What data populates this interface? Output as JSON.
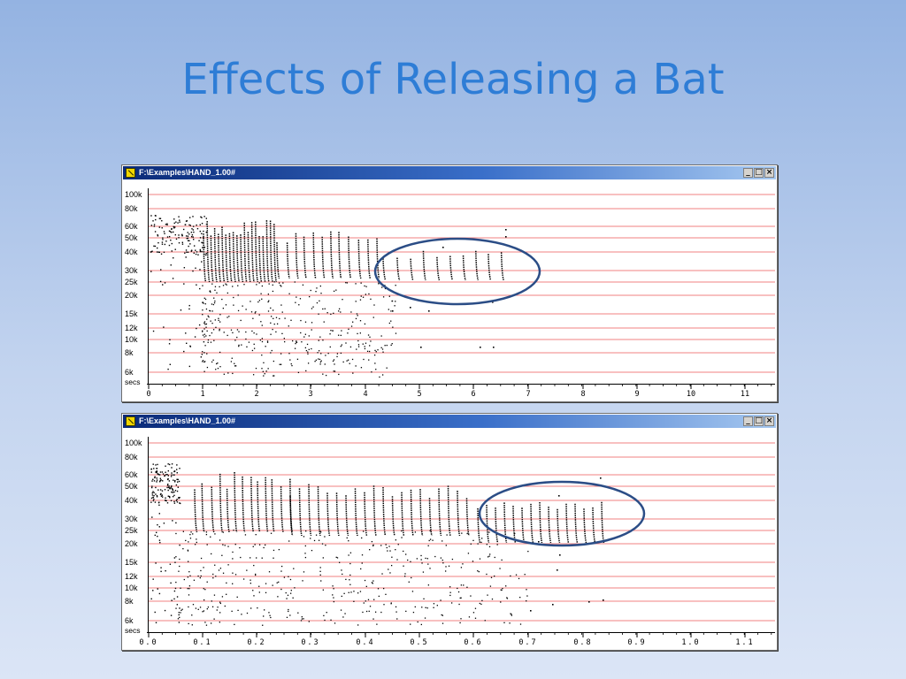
{
  "slide": {
    "title": "Effects of Releasing a Bat"
  },
  "windows": [
    {
      "title": "F:\\Examples\\HAND_1.00#",
      "controls": {
        "minimize": "_",
        "maximize": "□",
        "close": "×"
      },
      "time_axis": {
        "unit_label": "secs",
        "ticks": [
          "0",
          "1",
          "2",
          "3",
          "4",
          "5",
          "6",
          "7",
          "8",
          "9",
          "10",
          "11"
        ]
      },
      "freq_axis": {
        "ticks": [
          "100k",
          "80k",
          "60k",
          "50k",
          "40k",
          "30k",
          "25k",
          "20k",
          "15k",
          "12k",
          "10k",
          "8k",
          "6k"
        ]
      }
    },
    {
      "title": "F:\\Examples\\HAND_1.00#",
      "controls": {
        "minimize": "_",
        "maximize": "□",
        "close": "×"
      },
      "time_axis": {
        "unit_label": "secs",
        "ticks": [
          "0.0",
          "0.1",
          "0.2",
          "0.3",
          "0.4",
          "0.5",
          "0.6",
          "0.7",
          "0.8",
          "0.9",
          "1.0",
          "1.1"
        ]
      },
      "freq_axis": {
        "ticks": [
          "100k",
          "80k",
          "60k",
          "50k",
          "40k",
          "30k",
          "25k",
          "20k",
          "15k",
          "12k",
          "10k",
          "8k",
          "6k"
        ]
      }
    }
  ],
  "colors": {
    "title": "#2e7dd6",
    "gridline": "#f08080",
    "ellipse": "#2b4d86",
    "dots": "#000000"
  }
}
